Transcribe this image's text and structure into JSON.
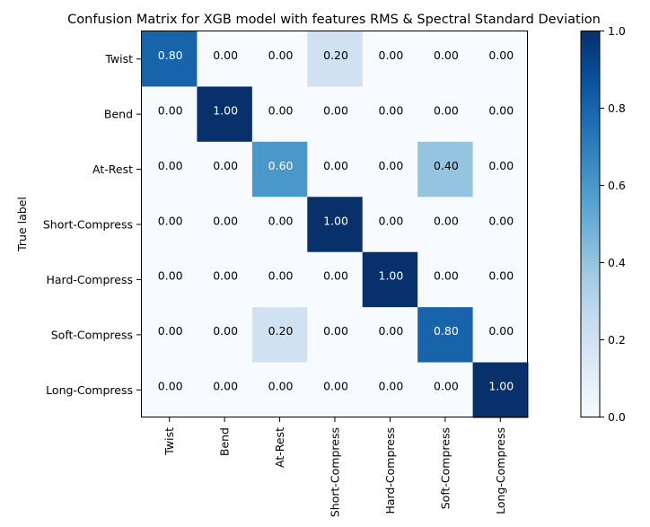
{
  "chart_data": {
    "type": "heatmap",
    "title": "Confusion Matrix for XGB model with features RMS & Spectral Standard Deviation",
    "ylabel": "True label",
    "xlabel": "",
    "x_categories": [
      "Twist",
      "Bend",
      "At-Rest",
      "Short-Compress",
      "Hard-Compress",
      "Soft-Compress",
      "Long-Compress"
    ],
    "y_categories": [
      "Twist",
      "Bend",
      "At-Rest",
      "Short-Compress",
      "Hard-Compress",
      "Soft-Compress",
      "Long-Compress"
    ],
    "values": [
      [
        0.8,
        0.0,
        0.0,
        0.2,
        0.0,
        0.0,
        0.0
      ],
      [
        0.0,
        1.0,
        0.0,
        0.0,
        0.0,
        0.0,
        0.0
      ],
      [
        0.0,
        0.0,
        0.6,
        0.0,
        0.0,
        0.4,
        0.0
      ],
      [
        0.0,
        0.0,
        0.0,
        1.0,
        0.0,
        0.0,
        0.0
      ],
      [
        0.0,
        0.0,
        0.0,
        0.0,
        1.0,
        0.0,
        0.0
      ],
      [
        0.0,
        0.0,
        0.2,
        0.0,
        0.0,
        0.8,
        0.0
      ],
      [
        0.0,
        0.0,
        0.0,
        0.0,
        0.0,
        0.0,
        1.0
      ]
    ],
    "colormap": "Blues",
    "colorbar": {
      "range": [
        0.0,
        1.0
      ],
      "ticks": [
        "0.0",
        "0.2",
        "0.4",
        "0.6",
        "0.8",
        "1.0"
      ]
    },
    "grid": false
  }
}
